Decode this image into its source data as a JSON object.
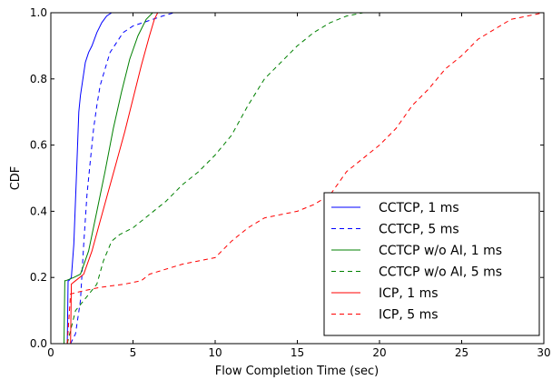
{
  "chart_data": {
    "type": "line",
    "xlabel": "Flow Completion Time (sec)",
    "ylabel": "CDF",
    "xlim": [
      0,
      30
    ],
    "ylim": [
      0,
      1.0
    ],
    "xticks": [
      "0",
      "5",
      "10",
      "15",
      "20",
      "25",
      "30"
    ],
    "yticks": [
      "0.0",
      "0.2",
      "0.4",
      "0.6",
      "0.8",
      "1.0"
    ],
    "legend_position": "lower-right",
    "grid": false,
    "series": [
      {
        "name": "CCTCP, 1 ms",
        "color": "#0000ff",
        "dash": "solid",
        "x": [
          1.0,
          1.05,
          1.1,
          1.25,
          1.4,
          1.55,
          1.7,
          1.8,
          1.95,
          2.1,
          2.3,
          2.5,
          2.8,
          3.1,
          3.4,
          3.7,
          4.0,
          4.3
        ],
        "y": [
          0.0,
          0.19,
          0.19,
          0.2,
          0.3,
          0.5,
          0.7,
          0.75,
          0.8,
          0.85,
          0.88,
          0.9,
          0.94,
          0.97,
          0.99,
          1.0,
          1.0,
          1.0
        ]
      },
      {
        "name": "CCTCP, 5 ms",
        "color": "#0000ff",
        "dash": "dashed",
        "x": [
          1.2,
          1.5,
          1.8,
          2.0,
          2.2,
          2.4,
          2.6,
          2.8,
          3.0,
          3.3,
          3.6,
          4.0,
          4.4,
          5.0,
          5.6,
          6.2,
          6.8,
          7.5
        ],
        "y": [
          0.0,
          0.03,
          0.13,
          0.3,
          0.45,
          0.55,
          0.65,
          0.72,
          0.78,
          0.83,
          0.88,
          0.91,
          0.94,
          0.96,
          0.97,
          0.98,
          0.99,
          1.0
        ]
      },
      {
        "name": "CCTCP w/o AI, 1 ms",
        "color": "#008000",
        "dash": "solid",
        "x": [
          0.8,
          0.85,
          0.9,
          1.4,
          1.8,
          2.3,
          2.8,
          3.3,
          3.8,
          4.3,
          4.8,
          5.3,
          5.8,
          6.2
        ],
        "y": [
          0.0,
          0.19,
          0.19,
          0.2,
          0.21,
          0.28,
          0.4,
          0.52,
          0.65,
          0.76,
          0.86,
          0.93,
          0.98,
          1.0
        ]
      },
      {
        "name": "CCTCP w/o AI, 5 ms",
        "color": "#008000",
        "dash": "dashed",
        "x": [
          1.0,
          1.5,
          2.0,
          2.8,
          3.2,
          3.7,
          4.2,
          5.0,
          6.0,
          7.0,
          8.0,
          9.0,
          10.0,
          11.0,
          12.0,
          13.0,
          14.0,
          15.0,
          16.0,
          17.0,
          18.0,
          19.0,
          19.5
        ],
        "y": [
          0.0,
          0.1,
          0.13,
          0.18,
          0.25,
          0.31,
          0.33,
          0.35,
          0.39,
          0.43,
          0.48,
          0.52,
          0.57,
          0.63,
          0.72,
          0.8,
          0.85,
          0.9,
          0.94,
          0.97,
          0.99,
          1.0,
          1.0
        ]
      },
      {
        "name": "ICP, 1 ms",
        "color": "#ff0000",
        "dash": "solid",
        "x": [
          1.2,
          1.25,
          1.5,
          2.0,
          2.5,
          3.0,
          3.5,
          4.0,
          4.5,
          5.0,
          5.5,
          6.0,
          6.3,
          6.5
        ],
        "y": [
          0.0,
          0.18,
          0.19,
          0.21,
          0.28,
          0.37,
          0.46,
          0.55,
          0.64,
          0.74,
          0.84,
          0.93,
          0.98,
          1.0
        ]
      },
      {
        "name": "ICP, 5 ms",
        "color": "#ff0000",
        "dash": "dashed",
        "x": [
          1.0,
          1.2,
          2.0,
          3.0,
          4.5,
          5.5,
          6.0,
          8.0,
          10.0,
          11.0,
          12.0,
          13.0,
          14.0,
          15.0,
          16.0,
          17.0,
          18.0,
          19.0,
          20.0,
          21.0,
          22.0,
          23.0,
          24.0,
          25.0,
          26.0,
          27.0,
          28.0,
          29.0,
          30.0
        ],
        "y": [
          0.0,
          0.15,
          0.16,
          0.17,
          0.18,
          0.19,
          0.21,
          0.24,
          0.26,
          0.31,
          0.35,
          0.38,
          0.39,
          0.4,
          0.42,
          0.45,
          0.52,
          0.56,
          0.6,
          0.65,
          0.72,
          0.77,
          0.83,
          0.87,
          0.92,
          0.95,
          0.98,
          0.99,
          1.0
        ]
      }
    ]
  }
}
